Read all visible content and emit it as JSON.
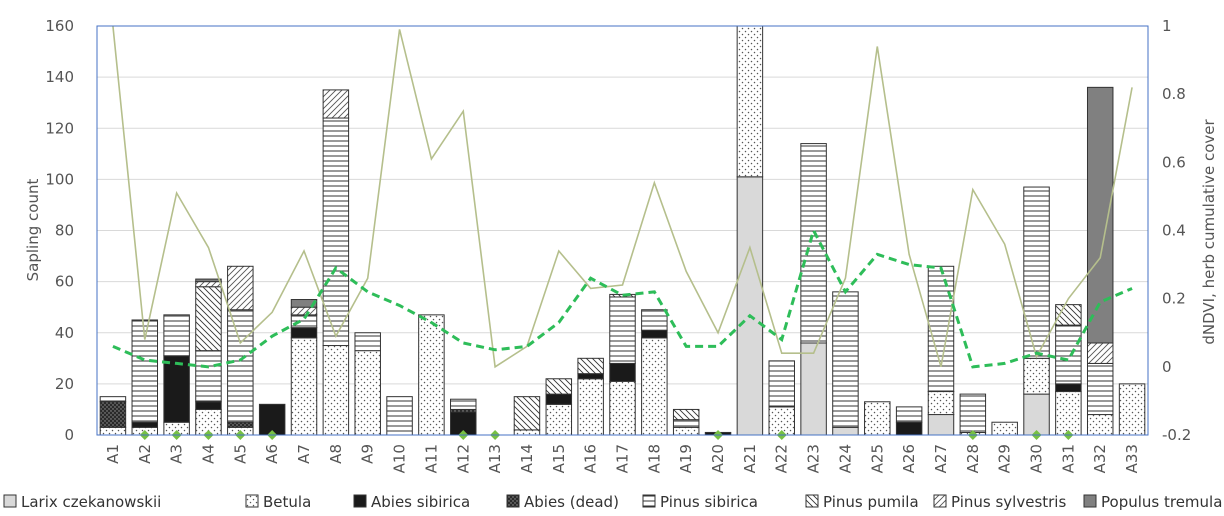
{
  "chart_data": {
    "type": "bar",
    "stacked": true,
    "categories": [
      "A1",
      "A2",
      "A3",
      "A4",
      "A5",
      "A6",
      "A7",
      "A8",
      "A9",
      "A10",
      "A11",
      "A12",
      "A13",
      "A14",
      "A15",
      "A16",
      "A17",
      "A18",
      "A19",
      "A20",
      "A21",
      "A22",
      "A23",
      "A24",
      "A25",
      "A26",
      "A27",
      "A28",
      "A29",
      "A30",
      "A31",
      "A32",
      "A33"
    ],
    "ylabel": "Sapling count",
    "ylim": [
      0,
      160
    ],
    "yticks": [
      0,
      20,
      40,
      60,
      80,
      100,
      120,
      140,
      160
    ],
    "y2label": "dNDVI, herb cumulative cover",
    "y2lim": [
      -0.2,
      1
    ],
    "y2ticks": [
      -0.2,
      0,
      0.2,
      0.4,
      0.6,
      0.8,
      1
    ],
    "y2tick_labels": [
      "-0.2",
      "0",
      "0.2",
      "0.4",
      "0.6",
      "0.8",
      "1"
    ],
    "grid": true,
    "legend_position": "bottom",
    "series": [
      {
        "name": "Larix czekanowskii",
        "pattern": "solid-light-grey",
        "values": [
          0,
          0,
          0,
          0,
          0,
          0,
          0,
          0,
          0,
          0,
          0,
          0,
          0,
          0,
          0,
          0,
          0,
          0,
          0,
          0,
          101,
          0,
          36,
          3,
          0,
          0,
          8,
          0,
          0,
          16,
          0,
          0,
          0
        ]
      },
      {
        "name": "Betula",
        "pattern": "dotted",
        "values": [
          3,
          3,
          5,
          10,
          3,
          0,
          38,
          35,
          33,
          0,
          47,
          0,
          0,
          2,
          12,
          22,
          21,
          38,
          3,
          0,
          59,
          11,
          0,
          0,
          13,
          0,
          9,
          1,
          5,
          14,
          17,
          8,
          20
        ]
      },
      {
        "name": "Abies sibirica",
        "pattern": "solid-black",
        "values": [
          0,
          2,
          26,
          3,
          0,
          12,
          4,
          0,
          0,
          0,
          0,
          9,
          0,
          0,
          4,
          2,
          7,
          3,
          0,
          1,
          0,
          0,
          0,
          0,
          0,
          5,
          0,
          0,
          0,
          0,
          3,
          0,
          0
        ]
      },
      {
        "name": "Abies (dead)",
        "pattern": "dark-dotted",
        "values": [
          10,
          0,
          0,
          0,
          2,
          0,
          0,
          0,
          0,
          0,
          0,
          1,
          0,
          0,
          0,
          0,
          0,
          0,
          0,
          0,
          0,
          0,
          0,
          0,
          0,
          0,
          0,
          0,
          0,
          0,
          0,
          0,
          0
        ]
      },
      {
        "name": "Pinus sibirica",
        "pattern": "horizontal-lines",
        "values": [
          2,
          40,
          16,
          20,
          44,
          0,
          5,
          89,
          7,
          15,
          0,
          4,
          0,
          0,
          0,
          0,
          26,
          8,
          3,
          0,
          0,
          18,
          78,
          53,
          0,
          6,
          49,
          15,
          0,
          67,
          23,
          20,
          0
        ]
      },
      {
        "name": "Pinus pumila",
        "pattern": "back-diagonal",
        "values": [
          0,
          0,
          0,
          25,
          0,
          0,
          0,
          0,
          0,
          0,
          0,
          0,
          0,
          13,
          6,
          6,
          1,
          0,
          4,
          0,
          0,
          0,
          0,
          0,
          0,
          0,
          0,
          0,
          0,
          0,
          8,
          0,
          0
        ]
      },
      {
        "name": "Pinus sylvestris",
        "pattern": "forward-diagonal",
        "values": [
          0,
          0,
          0,
          2,
          17,
          0,
          3,
          11,
          0,
          0,
          0,
          0,
          0,
          0,
          0,
          0,
          0,
          0,
          0,
          0,
          0,
          0,
          0,
          0,
          0,
          0,
          0,
          0,
          0,
          0,
          0,
          8,
          0
        ]
      },
      {
        "name": "Populus tremula",
        "pattern": "solid-dark-grey",
        "values": [
          0,
          0,
          0,
          1,
          0,
          0,
          3,
          0,
          0,
          0,
          0,
          0,
          0,
          0,
          0,
          0,
          0,
          0,
          0,
          0,
          0,
          0,
          0,
          0,
          0,
          0,
          0,
          0,
          0,
          0,
          0,
          100,
          0
        ]
      }
    ],
    "lines": [
      {
        "style": "thin-solid",
        "color": "#b5bf8c",
        "axis": "secondary",
        "values": [
          1.0,
          0.08,
          0.51,
          0.35,
          0.07,
          0.16,
          0.34,
          0.09,
          0.26,
          0.99,
          0.61,
          0.75,
          0.0,
          0.06,
          0.34,
          0.23,
          0.24,
          0.54,
          0.28,
          0.1,
          0.35,
          0.04,
          0.04,
          0.26,
          0.94,
          0.33,
          0.0,
          0.52,
          0.36,
          0.03,
          0.2,
          0.32,
          0.82
        ]
      },
      {
        "style": "dashed",
        "color": "#2ebd59",
        "axis": "secondary",
        "values": [
          0.06,
          0.02,
          0.01,
          0.0,
          0.02,
          0.09,
          0.14,
          0.29,
          0.22,
          0.18,
          0.13,
          0.07,
          0.05,
          0.06,
          0.13,
          0.26,
          0.21,
          0.22,
          0.06,
          0.06,
          0.15,
          0.08,
          0.4,
          0.22,
          0.33,
          0.3,
          0.29,
          0.0,
          0.01,
          0.04,
          0.02,
          0.19,
          0.23
        ]
      }
    ],
    "markers": {
      "shape": "diamond",
      "color": "#76c043",
      "axis": "primary",
      "y": 0,
      "categories": [
        "A2",
        "A3",
        "A4",
        "A5",
        "A6",
        "A12",
        "A13",
        "A20",
        "A22",
        "A28",
        "A30",
        "A31"
      ]
    }
  },
  "colors": {
    "frame": "#4472c4",
    "grid": "#d9d9d9",
    "axis_text": "#555555"
  }
}
